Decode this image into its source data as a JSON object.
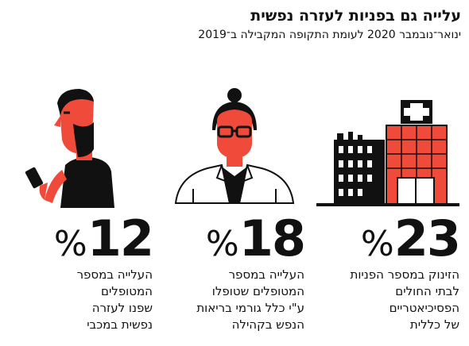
{
  "header": {
    "title": "עלייה גם בפניות לעזרה נפשית",
    "subtitle": "ינואר־נובמבר 2020 לעומת התקופה המקבילה ב־2019"
  },
  "colors": {
    "accent": "#f04b3a",
    "ink": "#111111",
    "background": "#ffffff"
  },
  "stats": [
    {
      "illustration": "hospital-icon",
      "number": "23",
      "sign": "%",
      "lines": [
        "הזינוק במספר הפניות",
        "לבתי החולים",
        "הפסיכיאטריים",
        "של כללית"
      ]
    },
    {
      "illustration": "doctor-icon",
      "number": "18",
      "sign": "%",
      "lines": [
        "העלייה במספר",
        "המטופלים שטופלו",
        "ע\"י כלל גורמי בריאות",
        "הנפש בקהילה"
      ]
    },
    {
      "illustration": "man-with-phone-icon",
      "number": "12",
      "sign": "%",
      "lines": [
        "העלייה במספר",
        "המטופלים",
        "שפנו לעזרה",
        "נפשית במכבי"
      ]
    }
  ]
}
